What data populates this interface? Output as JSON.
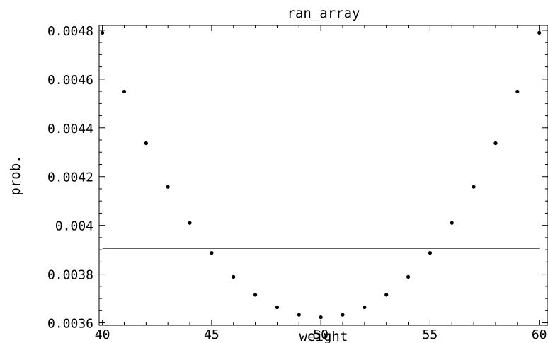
{
  "chart_data": {
    "type": "scatter",
    "title": "ran_array",
    "xlabel": "weight",
    "ylabel": "prob.",
    "xlim": [
      39.85,
      60.4
    ],
    "ylim": [
      0.00359,
      0.00482
    ],
    "x_ticks": [
      40,
      45,
      50,
      55,
      60
    ],
    "x_tick_labels": [
      "40",
      "45",
      "50",
      "55",
      "60"
    ],
    "y_ticks": [
      0.0036,
      0.0038,
      0.004,
      0.0042,
      0.0044,
      0.0046,
      0.0048
    ],
    "y_tick_labels": [
      "0.0036",
      "0.0038",
      "0.004",
      "0.0042",
      "0.0044",
      "0.0046",
      "0.0048"
    ],
    "grid": false,
    "legend": "none",
    "series": [
      {
        "type": "scatter",
        "x": [
          40,
          41,
          42,
          43,
          44,
          45,
          46,
          47,
          48,
          49,
          50,
          51,
          52,
          53,
          54,
          55,
          56,
          57,
          58,
          59,
          60
        ],
        "y": [
          0.00479,
          0.004549,
          0.004337,
          0.004158,
          0.00401,
          0.003887,
          0.003789,
          0.003715,
          0.003664,
          0.003633,
          0.003623,
          0.003633,
          0.003664,
          0.003715,
          0.003789,
          0.003887,
          0.00401,
          0.004158,
          0.004337,
          0.004549,
          0.00479
        ]
      },
      {
        "type": "line",
        "x": [
          40,
          60
        ],
        "y": [
          0.003906,
          0.003906
        ]
      }
    ]
  }
}
